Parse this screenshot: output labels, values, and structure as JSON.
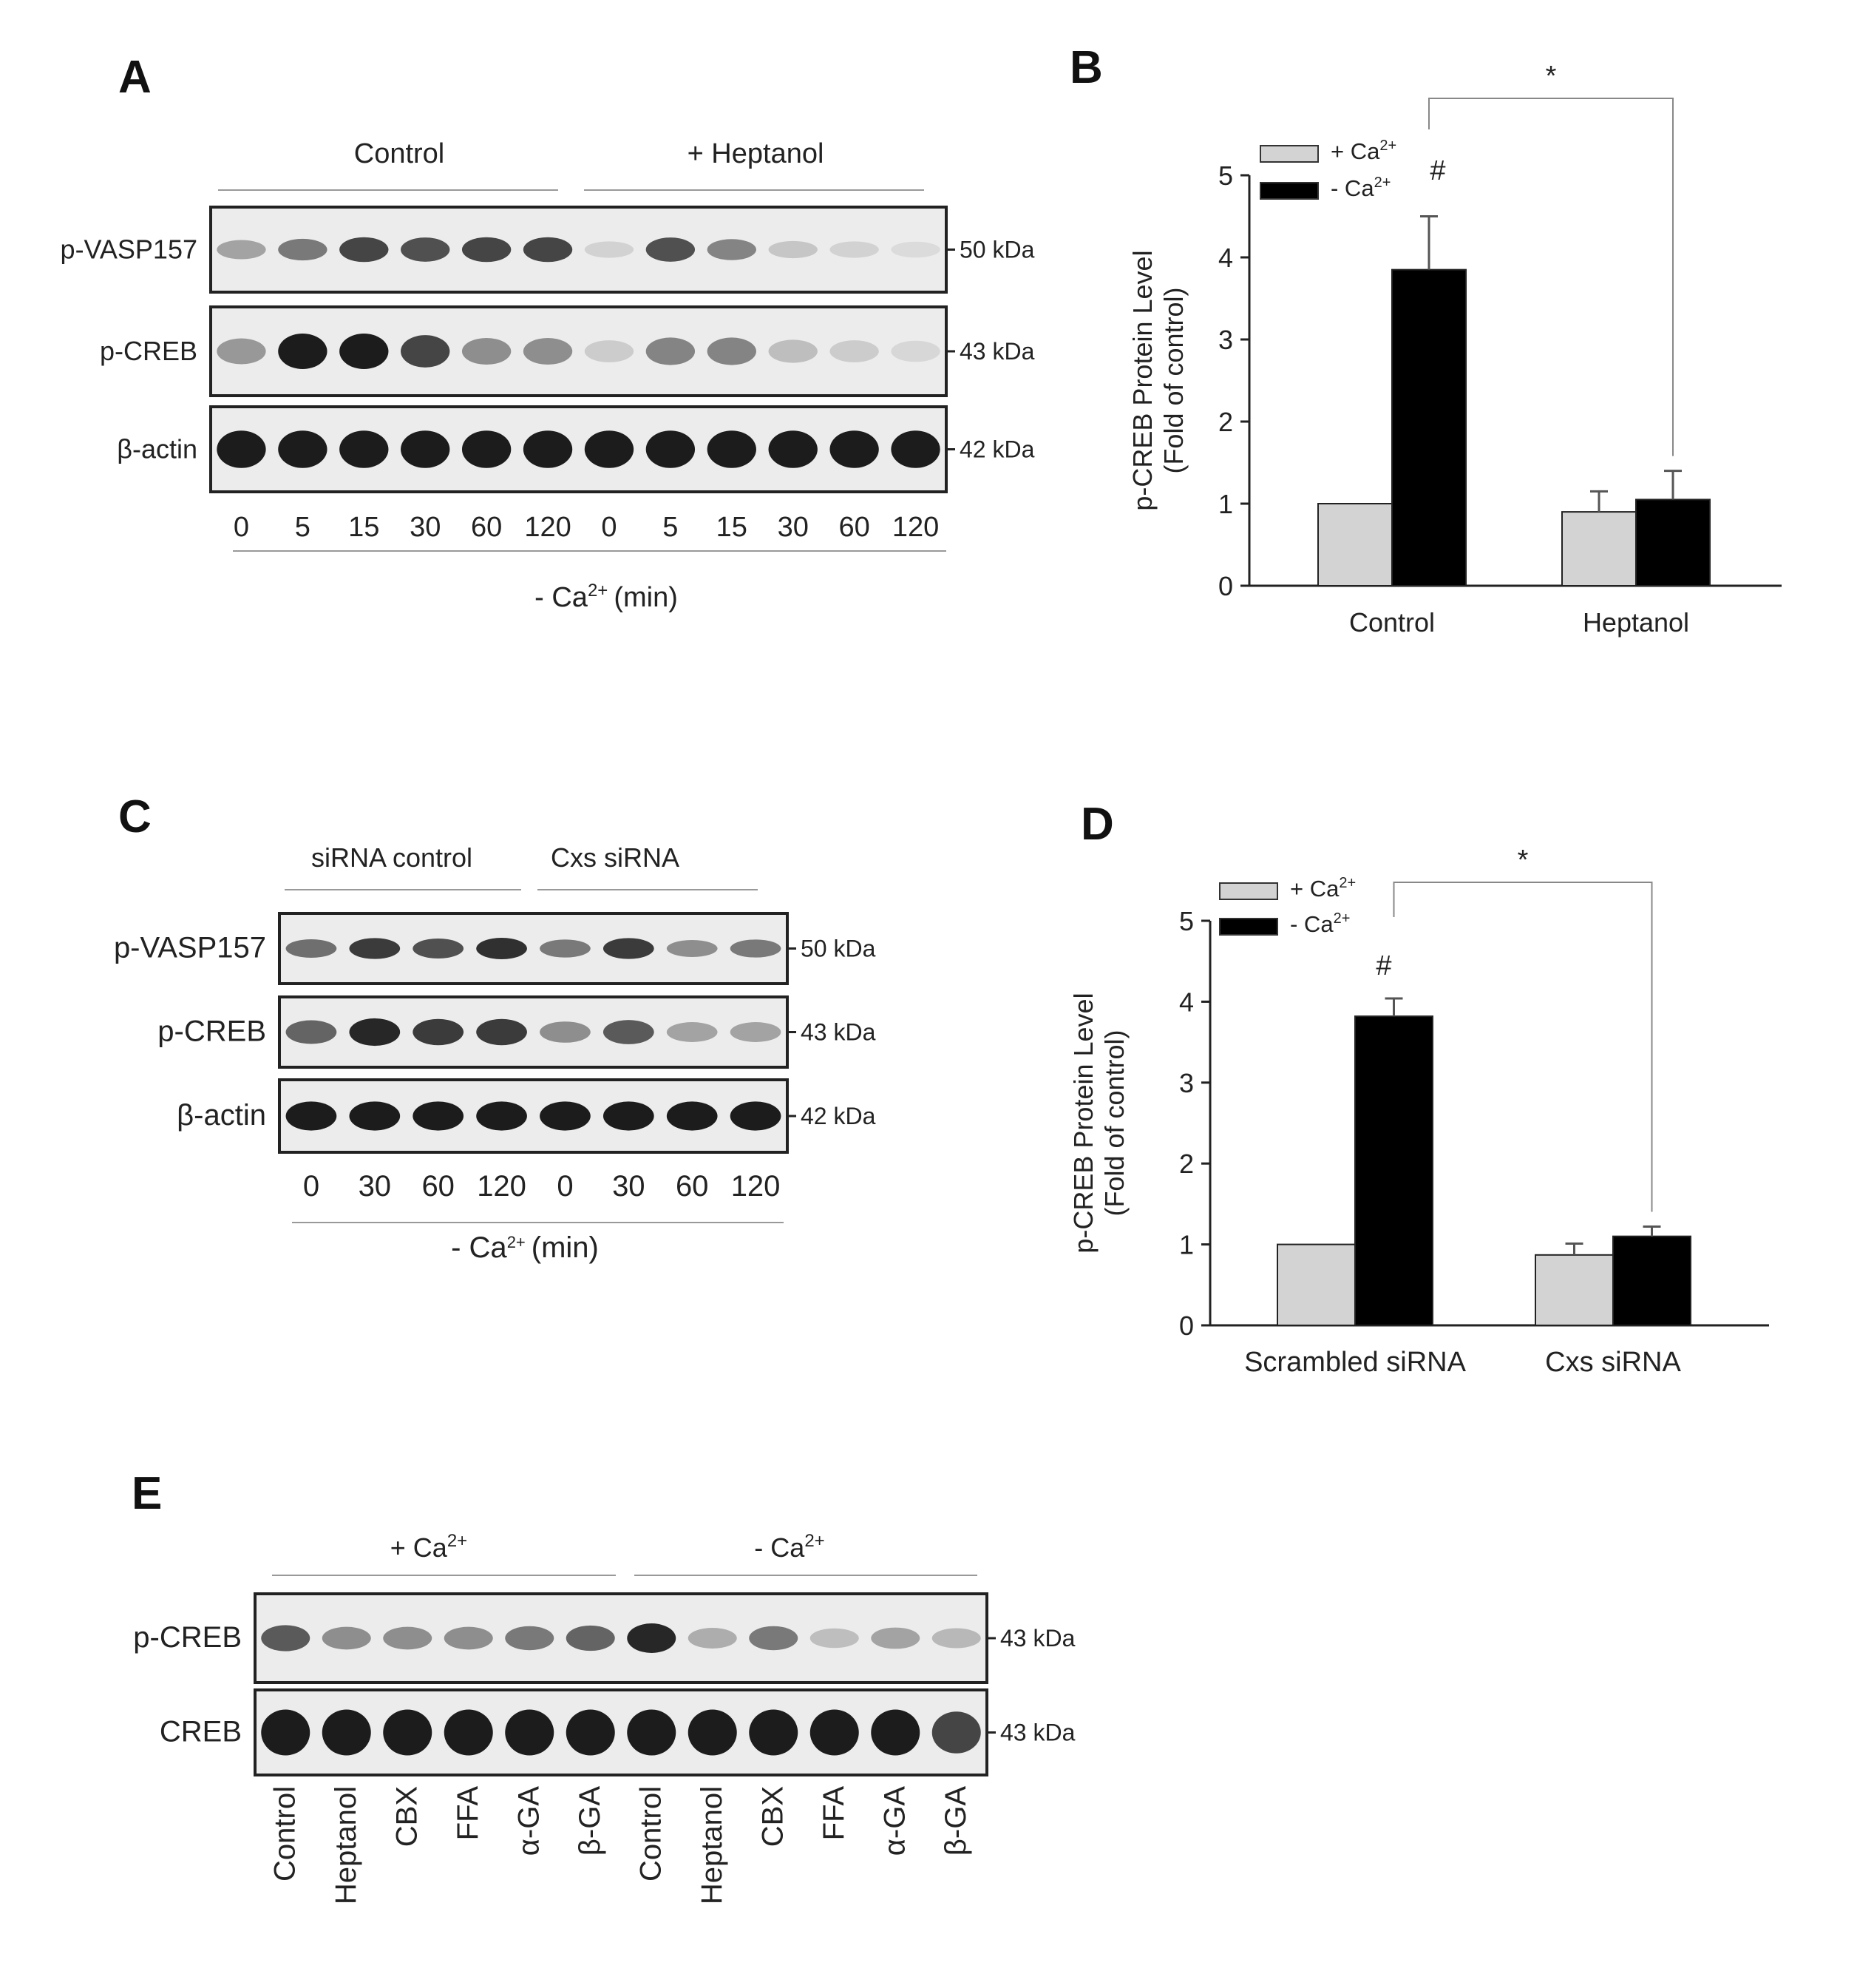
{
  "panels": {
    "A": {
      "label": "A",
      "groups": [
        "Control",
        "+ Heptanol"
      ],
      "rows": [
        {
          "name": "p-VASP157",
          "kda": "50 kDa",
          "intensity": [
            0.35,
            0.55,
            0.8,
            0.75,
            0.8,
            0.8,
            0.12,
            0.75,
            0.5,
            0.18,
            0.12,
            0.08
          ]
        },
        {
          "name": "p-CREB",
          "kda": "43 kDa",
          "intensity": [
            0.4,
            1.0,
            1.0,
            0.8,
            0.45,
            0.45,
            0.15,
            0.5,
            0.5,
            0.22,
            0.15,
            0.1
          ]
        },
        {
          "name": "β-actin",
          "kda": "42 kDa",
          "intensity": [
            1,
            1,
            1,
            1,
            1,
            1,
            1,
            1,
            1,
            1,
            1,
            1
          ]
        }
      ],
      "lanes": [
        "0",
        "5",
        "15",
        "30",
        "60",
        "120",
        "0",
        "5",
        "15",
        "30",
        "60",
        "120"
      ],
      "xlabel": "- Ca",
      "xlabel_sup": "2+",
      "xlabel_unit": "(min)"
    },
    "C": {
      "label": "C",
      "groups": [
        "siRNA control",
        "Cxs siRNA"
      ],
      "rows": [
        {
          "name": "p-VASP157",
          "kda": "50 kDa",
          "intensity": [
            0.6,
            0.85,
            0.75,
            0.9,
            0.55,
            0.85,
            0.45,
            0.55
          ]
        },
        {
          "name": "p-CREB",
          "kda": "43 kDa",
          "intensity": [
            0.65,
            0.95,
            0.85,
            0.85,
            0.45,
            0.7,
            0.35,
            0.35
          ]
        },
        {
          "name": "β-actin",
          "kda": "42 kDa",
          "intensity": [
            1,
            1,
            1,
            1,
            1,
            1,
            1,
            1
          ]
        }
      ],
      "lanes": [
        "0",
        "30",
        "60",
        "120",
        "0",
        "30",
        "60",
        "120"
      ],
      "xlabel": "- Ca",
      "xlabel_sup": "2+",
      "xlabel_unit": "(min)"
    },
    "E": {
      "label": "E",
      "groups": [
        "+ Ca",
        "- Ca"
      ],
      "group_sup": "2+",
      "rows": [
        {
          "name": "p-CREB",
          "kda": "43 kDa",
          "intensity": [
            0.7,
            0.45,
            0.45,
            0.45,
            0.55,
            0.65,
            0.95,
            0.3,
            0.55,
            0.22,
            0.35,
            0.25
          ]
        },
        {
          "name": "CREB",
          "kda": "43 kDa",
          "intensity": [
            1,
            1,
            1,
            1,
            1,
            1,
            1,
            1,
            1,
            1,
            1,
            0.8
          ]
        }
      ],
      "lanes": [
        "Control",
        "Heptanol",
        "CBX",
        "FFA",
        "α-GA",
        "β-GA",
        "Control",
        "Heptanol",
        "CBX",
        "FFA",
        "α-GA",
        "β-GA"
      ]
    }
  },
  "legend": {
    "plus_label": "+ Ca",
    "minus_label": "-  Ca",
    "sup": "2+"
  },
  "colors": {
    "plus": "#d3d3d3",
    "minus": "#000000",
    "band": "#1c1c1c"
  },
  "chart_data": [
    {
      "type": "bar",
      "panel": "B",
      "categories": [
        "Control",
        "Heptanol"
      ],
      "series": [
        {
          "name": "+ Ca2+",
          "values": [
            1.0,
            0.9
          ],
          "errors": [
            0.0,
            0.25
          ]
        },
        {
          "name": "- Ca2+",
          "values": [
            3.85,
            1.05
          ],
          "errors": [
            0.65,
            0.35
          ]
        }
      ],
      "ylabel": "p-CREB Protein Level",
      "ylabel2": "(Fold of control)",
      "ylim": [
        0,
        5
      ],
      "yticks": [
        "0",
        "1",
        "2",
        "3",
        "4",
        "5"
      ],
      "annotations": {
        "hash": "#",
        "star": "*"
      }
    },
    {
      "type": "bar",
      "panel": "D",
      "categories": [
        "Scrambled siRNA",
        "Cxs siRNA"
      ],
      "series": [
        {
          "name": "+ Ca2+",
          "values": [
            1.0,
            0.87
          ],
          "errors": [
            0.0,
            0.14
          ]
        },
        {
          "name": "- Ca2+",
          "values": [
            3.82,
            1.1
          ],
          "errors": [
            0.22,
            0.12
          ]
        }
      ],
      "ylabel": "p-CREB Protein Level",
      "ylabel2": "(Fold of control)",
      "ylim": [
        0,
        5
      ],
      "yticks": [
        "0",
        "1",
        "2",
        "3",
        "4",
        "5"
      ],
      "annotations": {
        "hash": "#",
        "star": "*"
      }
    }
  ]
}
